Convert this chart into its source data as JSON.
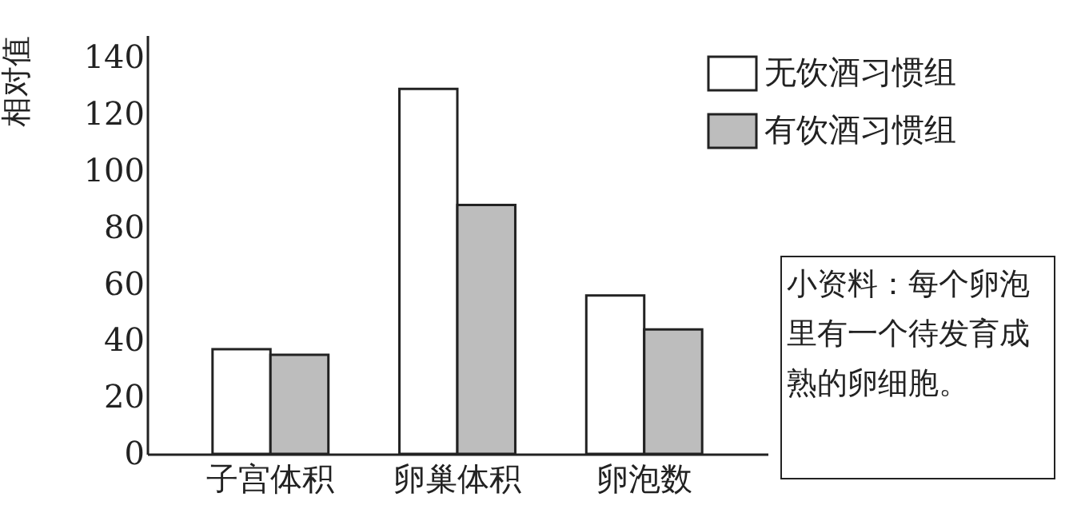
{
  "chart_data": {
    "type": "bar",
    "ylabel": "相对值",
    "categories": [
      "子宫体积",
      "卵巢体积",
      "卵泡数"
    ],
    "series": [
      {
        "name": "无饮酒习惯组",
        "color": "#ffffff",
        "values": [
          37,
          129,
          56
        ]
      },
      {
        "name": "有饮酒习惯组",
        "color": "#bdbdbd",
        "values": [
          35,
          88,
          44
        ]
      }
    ],
    "ylim": [
      0,
      148
    ],
    "yticks": [
      0,
      20,
      40,
      60,
      80,
      100,
      120,
      140
    ],
    "grid": false,
    "legend": "top right",
    "annotations": [
      "小资料：每个卵泡里有一个待发育成熟的卵细胞。"
    ]
  }
}
